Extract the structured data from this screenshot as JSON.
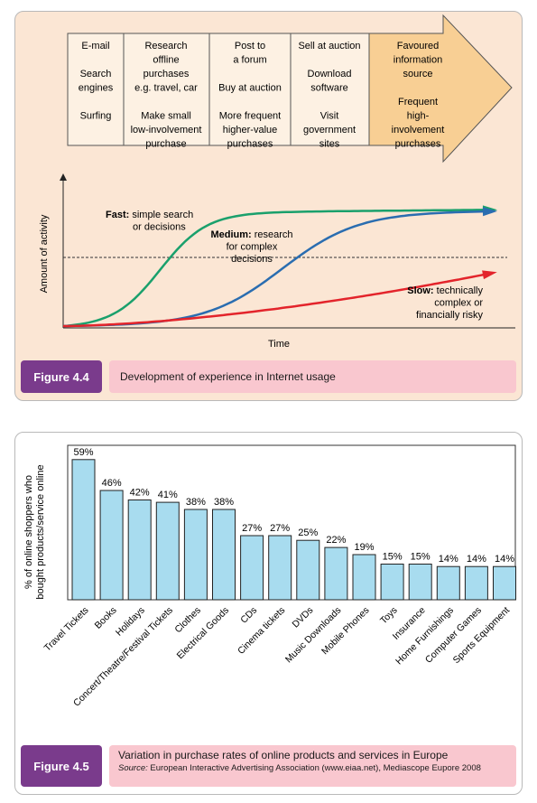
{
  "figure1": {
    "label": "Figure 4.4",
    "caption": "Development of experience in Internet usage",
    "stages": [
      [
        "E-mail",
        "",
        "Search",
        "engines",
        "",
        "Surfing"
      ],
      [
        "Research",
        "offline",
        "purchases",
        "e.g. travel, car",
        "",
        "Make small",
        "low-involvement",
        "purchase"
      ],
      [
        "Post to",
        "a forum",
        "",
        "Buy at auction",
        "",
        "More frequent",
        "higher-value",
        "purchases"
      ],
      [
        "Sell at auction",
        "",
        "Download",
        "software",
        "",
        "Visit",
        "government",
        "sites"
      ],
      [
        "Favoured",
        "information",
        "source",
        "",
        "Frequent",
        "high-",
        "involvement",
        "purchases"
      ]
    ],
    "chart_data": {
      "type": "line",
      "xlabel": "Time",
      "ylabel": "Amount of activity",
      "threshold_line": "dashed",
      "series": [
        {
          "name": "Fast",
          "label_bold": "Fast:",
          "label_rest": [
            "simple search",
            "or decisions"
          ],
          "color": "#1aa06c",
          "shape": "fast"
        },
        {
          "name": "Medium",
          "label_bold": "Medium:",
          "label_rest": [
            "research",
            "for complex",
            "decisions"
          ],
          "color": "#2a6db0",
          "shape": "medium"
        },
        {
          "name": "Slow",
          "label_bold": "Slow:",
          "label_rest": [
            "technically",
            "complex or",
            "financially risky"
          ],
          "color": "#e3242b",
          "shape": "slow"
        }
      ]
    }
  },
  "figure2": {
    "label": "Figure 4.5",
    "caption": "Variation in purchase rates of online products and services in Europe",
    "source_label": "Source:",
    "source_text": "European Interactive Advertising Association (www.eiaa.net), Mediascope Eupore 2008",
    "chart_data": {
      "type": "bar",
      "ylabel_lines": [
        "% of online shoppers who",
        "bought products/service online"
      ],
      "ylim": [
        0,
        65
      ],
      "bar_color": "#a8dcef",
      "categories": [
        "Travel Tickets",
        "Books",
        "Holidays",
        "Concert/Theatre/Festival Tickets",
        "Clothes",
        "Electrical Goods",
        "CDs",
        "Cinema tickets",
        "DVDs",
        "Music Downloads",
        "Mobile Phones",
        "Toys",
        "Insurance",
        "Home Furnishings",
        "Computer Games",
        "Sports Equipment"
      ],
      "values": [
        59,
        46,
        42,
        41,
        38,
        38,
        27,
        27,
        25,
        22,
        19,
        15,
        15,
        14,
        14,
        14
      ],
      "value_labels": [
        "59%",
        "46%",
        "42%",
        "41%",
        "38%",
        "38%",
        "27%",
        "27%",
        "25%",
        "22%",
        "19%",
        "15%",
        "15%",
        "14%",
        "14%",
        "14%"
      ]
    }
  }
}
